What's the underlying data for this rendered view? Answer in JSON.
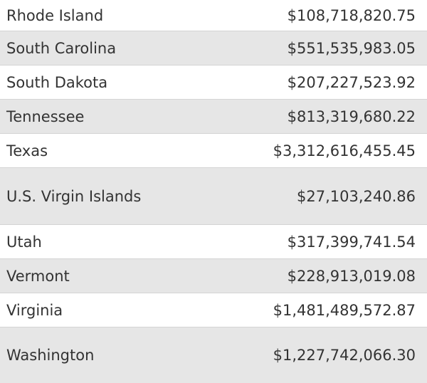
{
  "table": {
    "rows": [
      [
        "Rhode Island",
        "$108,718,820.75"
      ],
      [
        "South Carolina",
        "$551,535,983.05"
      ],
      [
        "South Dakota",
        "$207,227,523.92"
      ],
      [
        "Tennessee",
        "$813,319,680.22"
      ],
      [
        "Texas",
        "$3,312,616,455.45"
      ],
      [
        "U.S. Virgin Islands",
        "$27,103,240.86"
      ],
      [
        "Utah",
        "$317,399,741.54"
      ],
      [
        "Vermont",
        "$228,913,019.08"
      ],
      [
        "Virginia",
        "$1,481,489,572.87"
      ],
      [
        "Washington",
        "$1,227,742,066.30"
      ]
    ]
  }
}
